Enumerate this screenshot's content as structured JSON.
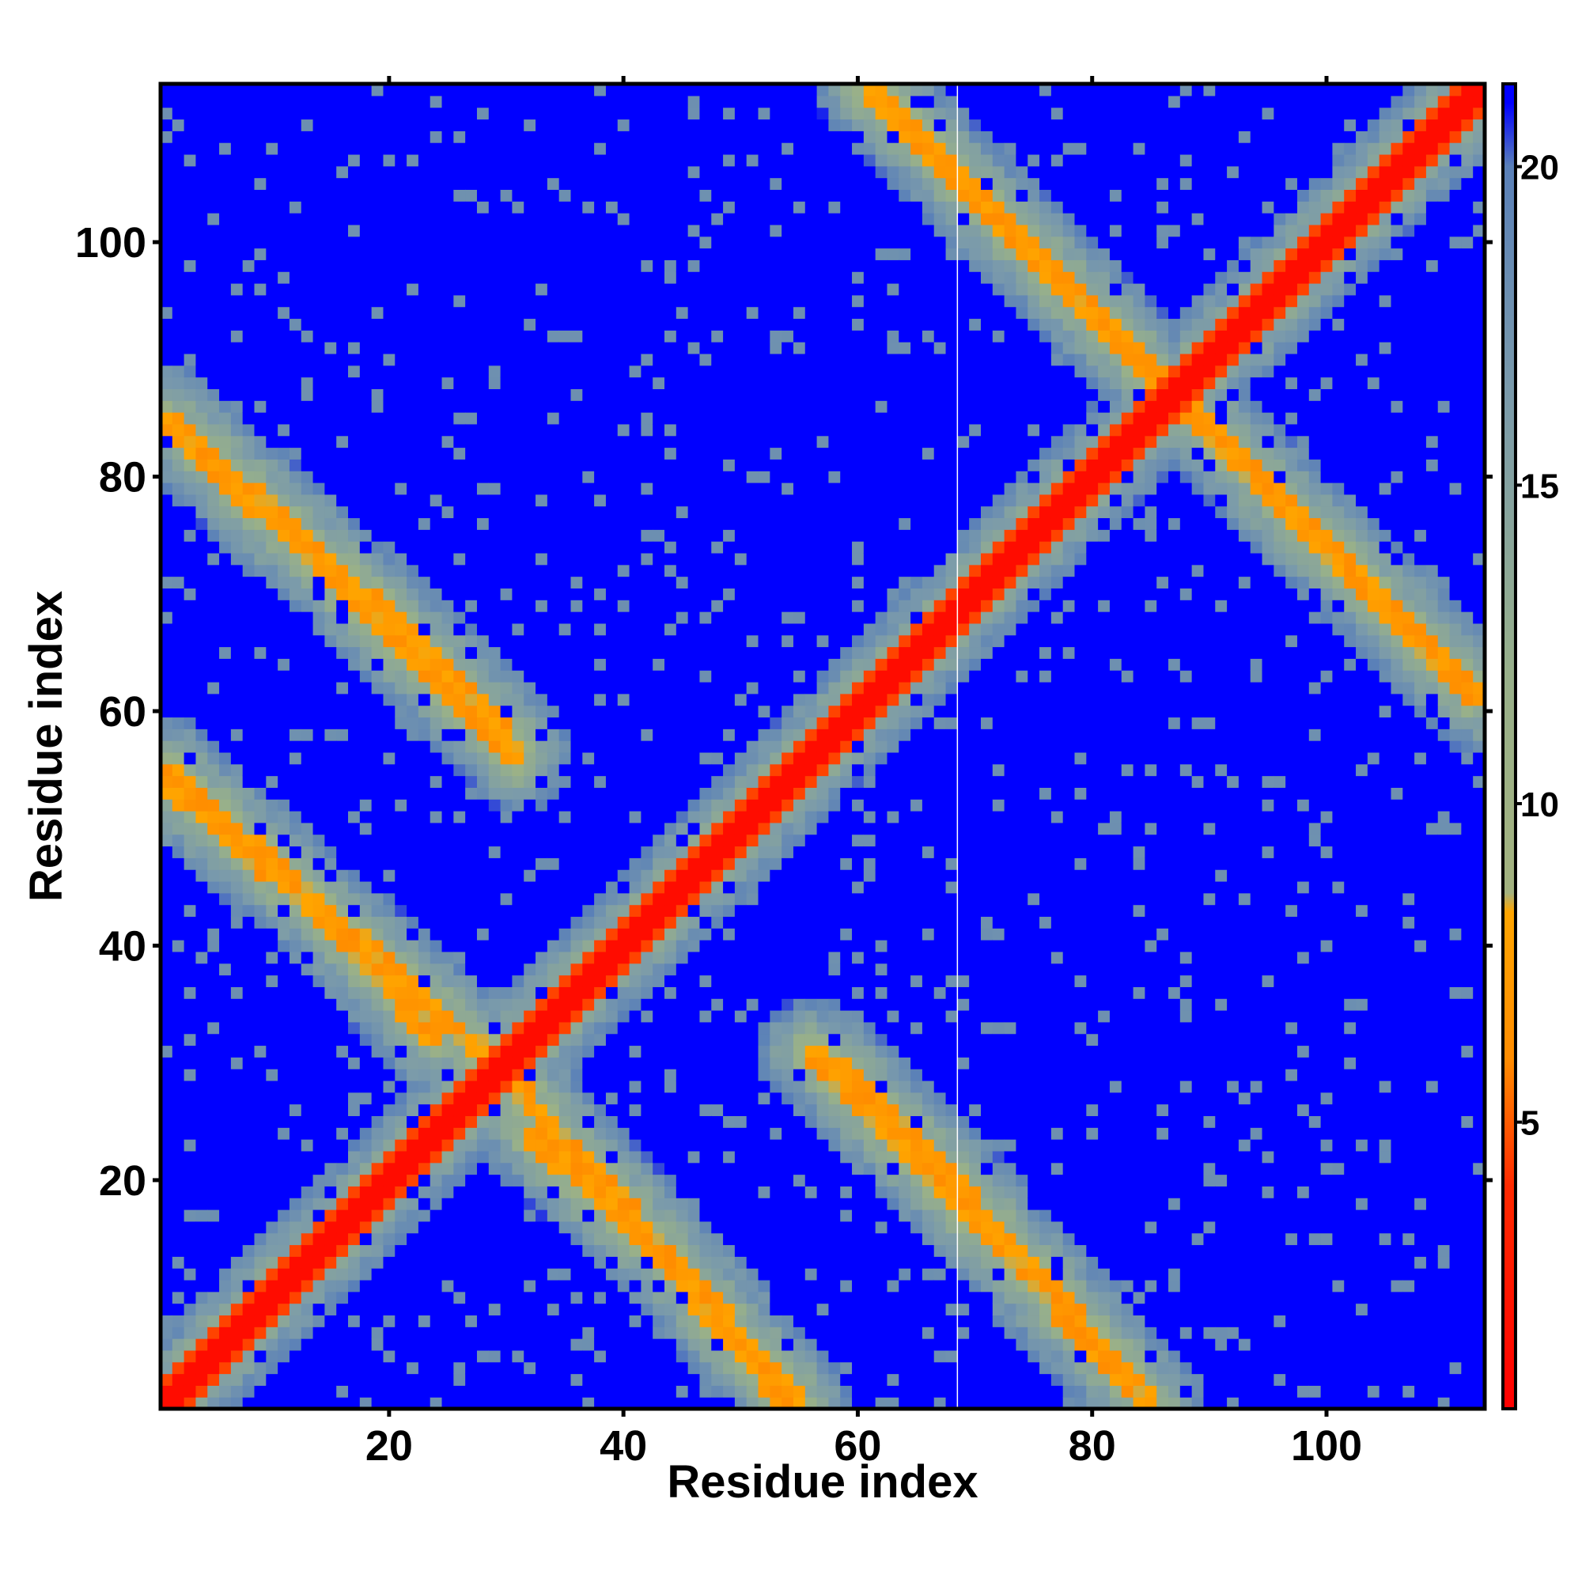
{
  "chart_data": {
    "type": "heatmap",
    "title": "",
    "xlabel": "Residue index",
    "ylabel": "Residue index",
    "n_residues": 113,
    "xlim": [
      0.5,
      113.5
    ],
    "ylim": [
      0.5,
      113.5
    ],
    "x_ticks": [
      20,
      40,
      60,
      80,
      100
    ],
    "y_ticks": [
      20,
      40,
      60,
      80,
      100
    ],
    "colorbar": {
      "range": [
        0.5,
        21.3
      ],
      "ticks": [
        5,
        10,
        15,
        20
      ],
      "stops": [
        {
          "value": 0.5,
          "color": "#ff0000"
        },
        {
          "value": 4.0,
          "color": "#ff2a00"
        },
        {
          "value": 6.0,
          "color": "#ff8c00"
        },
        {
          "value": 8.3,
          "color": "#ffa500"
        },
        {
          "value": 8.6,
          "color": "#a3b27f"
        },
        {
          "value": 12.0,
          "color": "#98b08a"
        },
        {
          "value": 16.5,
          "color": "#7a9aab"
        },
        {
          "value": 20.0,
          "color": "#5a80b8"
        },
        {
          "value": 21.0,
          "color": "#0000ff"
        }
      ]
    },
    "grid": false,
    "legend": "colorbar-right",
    "structure": {
      "diagonal": "i = j (distance ≈ 0–5)",
      "antidiagonal_contact_bands": [
        {
          "from": [
            1,
            54
          ],
          "to": [
            30,
            29
          ]
        },
        {
          "from": [
            1,
            85
          ],
          "to": [
            31,
            56
          ]
        },
        {
          "from": [
            30,
            29
          ],
          "to": [
            55,
            1
          ]
        },
        {
          "from": [
            44,
            13
          ],
          "to": [
            32,
            24
          ]
        },
        {
          "from": [
            58,
            30
          ],
          "to": [
            68,
            20
          ]
        },
        {
          "from": [
            68,
            20
          ],
          "to": [
            85,
            1
          ]
        },
        {
          "from": [
            61,
            113
          ],
          "to": [
            86,
            88
          ]
        },
        {
          "from": [
            86,
            88
          ],
          "to": [
            112,
            62
          ]
        }
      ],
      "background_value": 21
    },
    "separator_line_x": 68.5
  }
}
